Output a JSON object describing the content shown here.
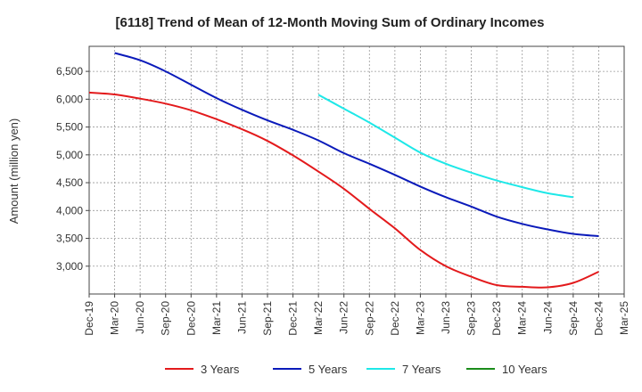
{
  "chart_data": {
    "type": "line",
    "title": "[6118]  Trend of Mean of 12-Month Moving Sum of Ordinary Incomes",
    "xlabel": "",
    "ylabel": "Amount (million yen)",
    "ylim": [
      2500,
      6950
    ],
    "yticks": [
      3000,
      3500,
      4000,
      4500,
      5000,
      5500,
      6000,
      6500
    ],
    "ytick_labels": [
      "3,000",
      "3,500",
      "4,000",
      "4,500",
      "5,000",
      "5,500",
      "6,000",
      "6,500"
    ],
    "x_tick_labels": [
      "Dec-19",
      "Mar-20",
      "Jun-20",
      "Sep-20",
      "Dec-20",
      "Mar-21",
      "Jun-21",
      "Sep-21",
      "Dec-21",
      "Mar-22",
      "Jun-22",
      "Sep-22",
      "Dec-22",
      "Mar-23",
      "Jun-23",
      "Sep-23",
      "Dec-23",
      "Mar-24",
      "Jun-24",
      "Sep-24",
      "Dec-24",
      "Mar-25"
    ],
    "grid": true,
    "legend_position": "bottom",
    "series": [
      {
        "name": "3 Years",
        "color": "#e31a1c",
        "start_index": 0,
        "values": [
          6120,
          6085,
          6010,
          5920,
          5800,
          5640,
          5460,
          5250,
          4990,
          4700,
          4390,
          4030,
          3680,
          3290,
          3000,
          2810,
          2660,
          2630,
          2620,
          2700,
          2900
        ]
      },
      {
        "name": "5 Years",
        "color": "#0a1aba",
        "start_index": 1,
        "values": [
          6830,
          6700,
          6500,
          6260,
          6020,
          5810,
          5620,
          5450,
          5260,
          5030,
          4840,
          4640,
          4430,
          4240,
          4070,
          3890,
          3760,
          3660,
          3580,
          3540
        ]
      },
      {
        "name": "7 Years",
        "color": "#1ee8e8",
        "start_index": 9,
        "values": [
          6080,
          5830,
          5580,
          5310,
          5040,
          4840,
          4680,
          4540,
          4420,
          4310,
          4240
        ]
      },
      {
        "name": "10 Years",
        "color": "#1a8c1a",
        "start_index": 0,
        "values": []
      }
    ]
  }
}
